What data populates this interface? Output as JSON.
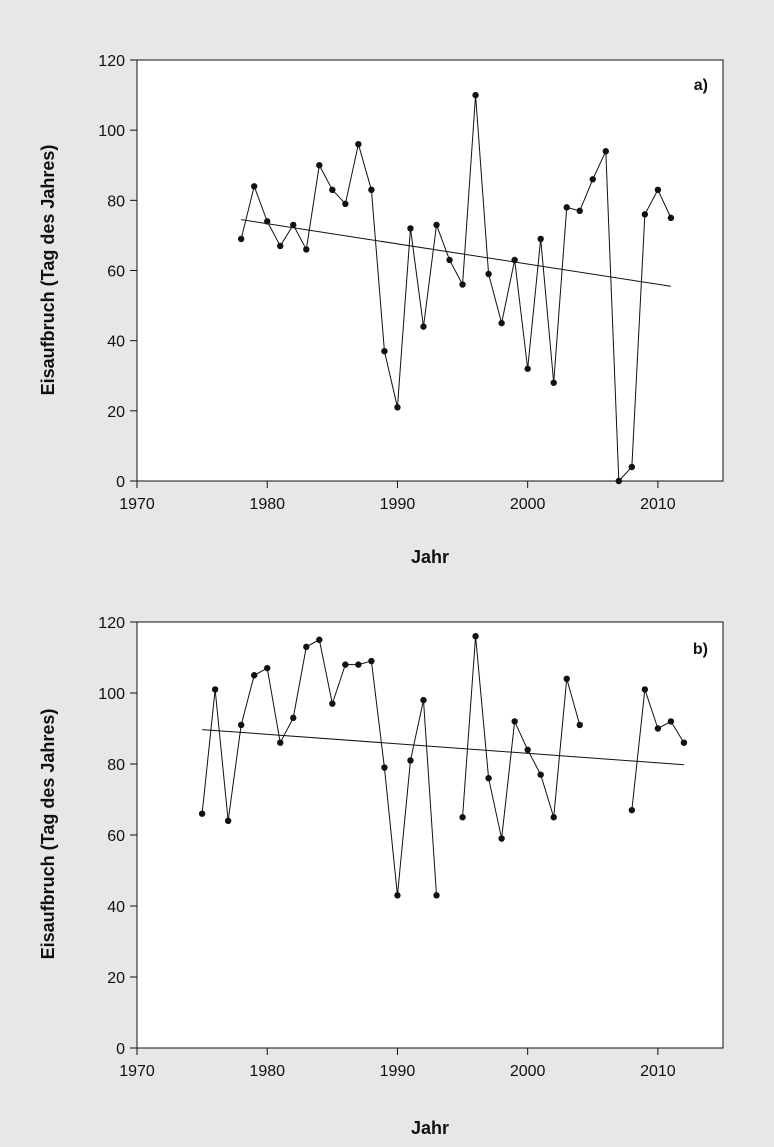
{
  "colors": {
    "background": "#e6e7e8",
    "plot_area": "#ffffff",
    "ink": "#111111"
  },
  "chart_data": [
    {
      "type": "scatter",
      "panel_label": "a)",
      "xlabel": "Jahr",
      "ylabel": "Eisaufbruch (Tag des Jahres)",
      "xlim": [
        1970,
        2015
      ],
      "ylim": [
        0,
        120
      ],
      "xticks": [
        1970,
        1980,
        1990,
        2000,
        2010
      ],
      "yticks": [
        0,
        20,
        40,
        60,
        80,
        100,
        120
      ],
      "grid": false,
      "x": [
        1978,
        1979,
        1980,
        1981,
        1982,
        1983,
        1984,
        1985,
        1986,
        1987,
        1988,
        1989,
        1990,
        1991,
        1992,
        1993,
        1994,
        1995,
        1996,
        1997,
        1998,
        1999,
        2000,
        2001,
        2002,
        2003,
        2004,
        2005,
        2006,
        2007,
        2008,
        2009,
        2010,
        2011
      ],
      "y": [
        69,
        84,
        74,
        67,
        73,
        66,
        90,
        83,
        79,
        96,
        83,
        37,
        21,
        72,
        44,
        73,
        63,
        56,
        110,
        59,
        45,
        63,
        32,
        69,
        28,
        78,
        77,
        86,
        94,
        0,
        4,
        76,
        83,
        75
      ],
      "trend": {
        "x": [
          1978,
          2011
        ],
        "y": [
          74.5,
          55.5
        ]
      }
    },
    {
      "type": "scatter",
      "panel_label": "b)",
      "xlabel": "Jahr",
      "ylabel": "Eisaufbruch (Tag des Jahres)",
      "xlim": [
        1970,
        2015
      ],
      "ylim": [
        0,
        120
      ],
      "xticks": [
        1970,
        1980,
        1990,
        2000,
        2010
      ],
      "yticks": [
        0,
        20,
        40,
        60,
        80,
        100,
        120
      ],
      "grid": false,
      "x": [
        1975,
        1976,
        1977,
        1978,
        1979,
        1980,
        1981,
        1982,
        1983,
        1984,
        1985,
        1986,
        1987,
        1988,
        1989,
        1990,
        1991,
        1992,
        1993,
        1995,
        1996,
        1997,
        1998,
        1999,
        2000,
        2001,
        2002,
        2003,
        2004,
        2008,
        2009,
        2010,
        2011,
        2012
      ],
      "y": [
        66,
        101,
        64,
        91,
        105,
        107,
        86,
        93,
        113,
        115,
        97,
        108,
        108,
        109,
        79,
        43,
        81,
        98,
        43,
        65,
        116,
        76,
        59,
        92,
        84,
        77,
        65,
        104,
        91,
        67,
        101,
        90,
        92,
        86
      ],
      "trend": {
        "x": [
          1975,
          2012
        ],
        "y": [
          89.7,
          79.8
        ]
      }
    }
  ]
}
